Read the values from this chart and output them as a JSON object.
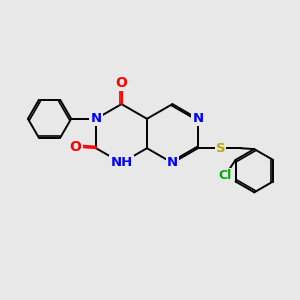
{
  "bg_color": "#e8e8e8",
  "bond_color": "#000000",
  "bond_width": 1.4,
  "atom_colors": {
    "N": "#0000ff",
    "O": "#ff0000",
    "S": "#bbaa00",
    "Cl": "#00aa00",
    "C": "#000000"
  },
  "fig_size": [
    3.0,
    3.0
  ],
  "dpi": 100,
  "xlim": [
    0,
    10
  ],
  "ylim": [
    0,
    10
  ]
}
